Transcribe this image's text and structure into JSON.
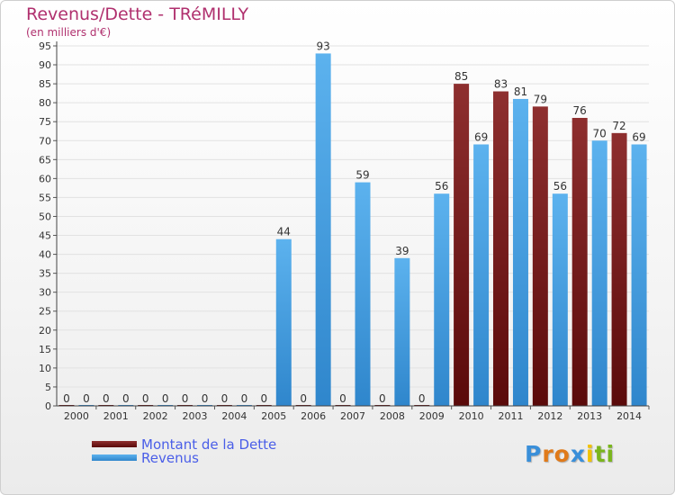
{
  "chart_data": {
    "type": "bar",
    "title": "Revenus/Dette - TRéMILLY",
    "subtitle": "(en milliers d'€)",
    "categories": [
      "2000",
      "2001",
      "2002",
      "2003",
      "2004",
      "2005",
      "2006",
      "2007",
      "2008",
      "2009",
      "2010",
      "2011",
      "2012",
      "2013",
      "2014"
    ],
    "series": [
      {
        "name": "Montant de la Dette",
        "color": "#7a1f1f",
        "values": [
          0,
          0,
          0,
          0,
          0,
          0,
          0,
          0,
          0,
          0,
          85,
          83,
          79,
          76,
          72
        ]
      },
      {
        "name": "Revenus",
        "color": "#4aa3e0",
        "values": [
          0,
          0,
          0,
          0,
          0,
          44,
          93,
          59,
          39,
          56,
          69,
          81,
          56,
          70,
          69
        ]
      }
    ],
    "yticks": [
      0,
      5,
      10,
      15,
      20,
      25,
      30,
      35,
      40,
      45,
      50,
      55,
      60,
      65,
      70,
      75,
      80,
      85,
      90,
      95
    ],
    "ylim": [
      0,
      95
    ],
    "grid": true,
    "legend_position": "bottom-left"
  },
  "legend": {
    "debt_label": "Montant de la Dette",
    "revenue_label": "Revenus"
  },
  "logo": {
    "letters": [
      "P",
      "r",
      "o",
      "x",
      "i",
      "t",
      "i"
    ],
    "colors": [
      "#3a8fd9",
      "#e07a1a",
      "#e07a1a",
      "#3a8fd9",
      "#f2c200",
      "#7ab51d",
      "#7ab51d"
    ]
  }
}
